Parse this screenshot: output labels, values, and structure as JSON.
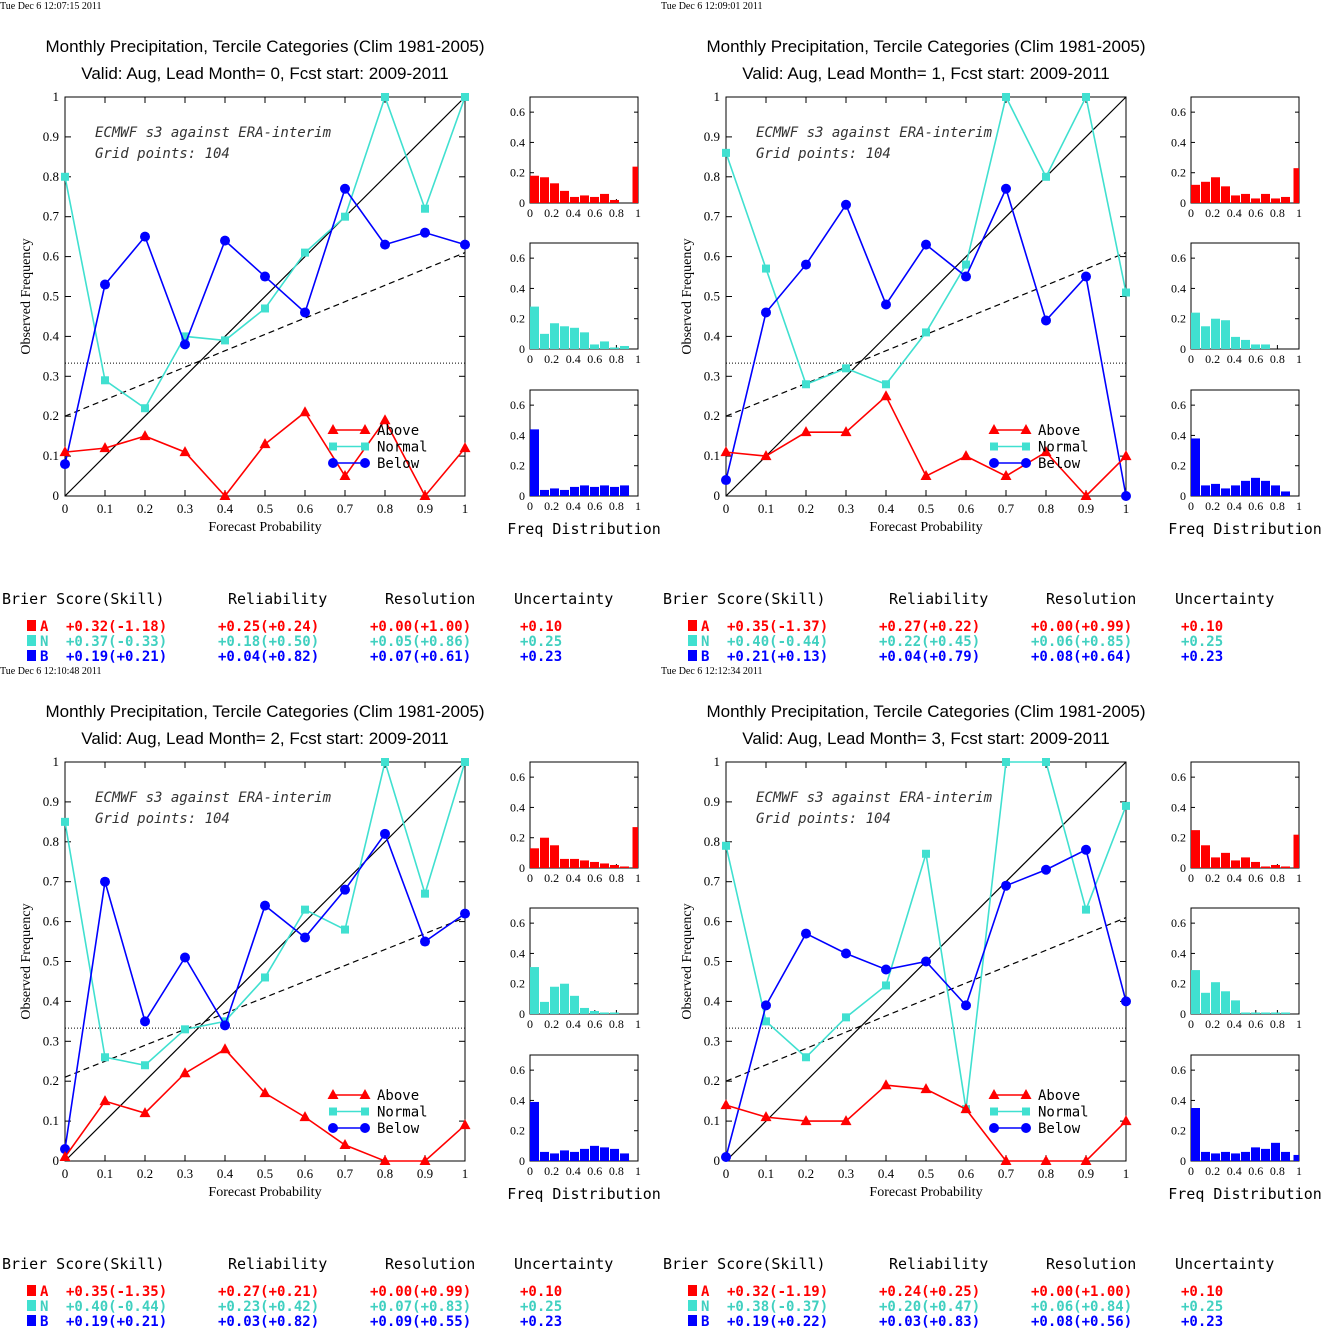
{
  "colors": {
    "above": "#ff0000",
    "normal": "#40e0d0",
    "below": "#0000ff",
    "above_text": "#ff0000",
    "normal_text": "#40d0c0",
    "below_text": "#0000ff",
    "axis": "#000000"
  },
  "common": {
    "title_line1": "Monthly Precipitation, Tercile Categories (Clim 1981-2005)",
    "annotation_line1": "ECMWF s3 against ERA-interim",
    "annotation_line2": "Grid points:  104",
    "xlabel": "Forecast Probability",
    "ylabel": "Observed Frequency",
    "hist_xlabel": "Freq Distribution",
    "legend": [
      "Above",
      "Normal",
      "Below"
    ],
    "score_headers": [
      "Brier Score(Skill)",
      "Reliability",
      "Resolution",
      "Uncertainty"
    ],
    "x_ticks": [
      "0",
      "0.1",
      "0.2",
      "0.3",
      "0.4",
      "0.5",
      "0.6",
      "0.7",
      "0.8",
      "0.9",
      "1"
    ],
    "y_ticks": [
      "0",
      "0.1",
      "0.2",
      "0.3",
      "0.4",
      "0.5",
      "0.6",
      "0.7",
      "0.8",
      "0.9",
      "1"
    ],
    "hist_x_ticks": [
      "0",
      "0.2",
      "0.4",
      "0.6",
      "0.8",
      "1"
    ],
    "hist_y_ticks": [
      "0",
      "0.2",
      "0.4",
      "0.6"
    ]
  },
  "chart_data": [
    {
      "type": "line",
      "timestamp": "Tue Dec  6 12:07:15 2011",
      "title_line2": "Valid: Aug, Lead Month= 0, Fcst start: 2009-2011",
      "x": [
        0,
        0.1,
        0.2,
        0.3,
        0.4,
        0.5,
        0.6,
        0.7,
        0.8,
        0.9,
        1
      ],
      "xlim": [
        0,
        1
      ],
      "ylim": [
        0,
        1
      ],
      "climatology": 0.333,
      "dashed_line": [
        0.2,
        0.61
      ],
      "series": [
        {
          "name": "Above",
          "values": [
            0.11,
            0.12,
            0.15,
            0.11,
            0.0,
            0.13,
            0.21,
            0.05,
            0.19,
            0.0,
            0.12
          ]
        },
        {
          "name": "Normal",
          "values": [
            0.8,
            0.29,
            0.22,
            0.4,
            0.39,
            0.47,
            0.61,
            0.7,
            1.0,
            0.72,
            1.0
          ]
        },
        {
          "name": "Below",
          "values": [
            0.08,
            0.53,
            0.65,
            0.38,
            0.64,
            0.55,
            0.46,
            0.77,
            0.63,
            0.66,
            0.63
          ]
        }
      ],
      "hist": {
        "above": [
          0.18,
          0.17,
          0.13,
          0.08,
          0.04,
          0.05,
          0.04,
          0.06,
          0.02,
          0.0,
          0.24
        ],
        "normal": [
          0.28,
          0.1,
          0.17,
          0.15,
          0.14,
          0.11,
          0.03,
          0.05,
          0.01,
          0.02,
          0.0
        ],
        "below": [
          0.44,
          0.04,
          0.05,
          0.04,
          0.06,
          0.07,
          0.06,
          0.07,
          0.06,
          0.07,
          0.0
        ]
      },
      "scores": [
        {
          "cat": "A",
          "brier": "+0.32(-1.18)",
          "reliability": "+0.25(+0.24)",
          "resolution": "+0.00(+1.00)",
          "uncertainty": "+0.10"
        },
        {
          "cat": "N",
          "brier": "+0.37(-0.33)",
          "reliability": "+0.18(+0.50)",
          "resolution": "+0.05(+0.86)",
          "uncertainty": "+0.25"
        },
        {
          "cat": "B",
          "brier": "+0.19(+0.21)",
          "reliability": "+0.04(+0.82)",
          "resolution": "+0.07(+0.61)",
          "uncertainty": "+0.23"
        }
      ]
    },
    {
      "type": "line",
      "timestamp": "Tue Dec  6 12:09:01 2011",
      "title_line2": "Valid: Aug, Lead Month= 1, Fcst start: 2009-2011",
      "x": [
        0,
        0.1,
        0.2,
        0.3,
        0.4,
        0.5,
        0.6,
        0.7,
        0.8,
        0.9,
        1
      ],
      "xlim": [
        0,
        1
      ],
      "ylim": [
        0,
        1
      ],
      "climatology": 0.333,
      "dashed_line": [
        0.2,
        0.61
      ],
      "series": [
        {
          "name": "Above",
          "values": [
            0.11,
            0.1,
            0.16,
            0.16,
            0.25,
            0.05,
            0.1,
            0.05,
            0.11,
            0.0,
            0.1
          ]
        },
        {
          "name": "Normal",
          "values": [
            0.86,
            0.57,
            0.28,
            0.32,
            0.28,
            0.41,
            0.58,
            1.0,
            0.8,
            1.0,
            0.51
          ]
        },
        {
          "name": "Below",
          "values": [
            0.04,
            0.46,
            0.58,
            0.73,
            0.48,
            0.63,
            0.55,
            0.77,
            0.44,
            0.55,
            0.0
          ]
        }
      ],
      "hist": {
        "above": [
          0.12,
          0.14,
          0.17,
          0.11,
          0.05,
          0.06,
          0.03,
          0.06,
          0.03,
          0.04,
          0.23
        ],
        "normal": [
          0.24,
          0.15,
          0.2,
          0.19,
          0.08,
          0.06,
          0.03,
          0.03,
          0.0,
          0.0,
          0.0
        ],
        "below": [
          0.38,
          0.07,
          0.08,
          0.05,
          0.07,
          0.1,
          0.12,
          0.1,
          0.07,
          0.03,
          0.0
        ]
      },
      "scores": [
        {
          "cat": "A",
          "brier": "+0.35(-1.37)",
          "reliability": "+0.27(+0.22)",
          "resolution": "+0.00(+0.99)",
          "uncertainty": "+0.10"
        },
        {
          "cat": "N",
          "brier": "+0.40(-0.44)",
          "reliability": "+0.22(+0.45)",
          "resolution": "+0.06(+0.85)",
          "uncertainty": "+0.25"
        },
        {
          "cat": "B",
          "brier": "+0.21(+0.13)",
          "reliability": "+0.04(+0.79)",
          "resolution": "+0.08(+0.64)",
          "uncertainty": "+0.23"
        }
      ]
    },
    {
      "type": "line",
      "timestamp": "Tue Dec  6 12:10:48 2011",
      "title_line2": "Valid: Aug, Lead Month= 2, Fcst start: 2009-2011",
      "x": [
        0,
        0.1,
        0.2,
        0.3,
        0.4,
        0.5,
        0.6,
        0.7,
        0.8,
        0.9,
        1
      ],
      "xlim": [
        0,
        1
      ],
      "ylim": [
        0,
        1
      ],
      "climatology": 0.333,
      "dashed_line": [
        0.21,
        0.61
      ],
      "series": [
        {
          "name": "Above",
          "values": [
            0.01,
            0.15,
            0.12,
            0.22,
            0.28,
            0.17,
            0.11,
            0.04,
            0.0,
            0.0,
            0.09
          ]
        },
        {
          "name": "Normal",
          "values": [
            0.85,
            0.26,
            0.24,
            0.33,
            0.35,
            0.46,
            0.63,
            0.58,
            1.0,
            0.67,
            1.0
          ]
        },
        {
          "name": "Below",
          "values": [
            0.03,
            0.7,
            0.35,
            0.51,
            0.34,
            0.64,
            0.56,
            0.68,
            0.82,
            0.55,
            0.62
          ]
        }
      ],
      "hist": {
        "above": [
          0.13,
          0.2,
          0.15,
          0.06,
          0.06,
          0.05,
          0.04,
          0.03,
          0.02,
          0.01,
          0.27
        ],
        "normal": [
          0.31,
          0.08,
          0.18,
          0.2,
          0.12,
          0.04,
          0.02,
          0.01,
          0.01,
          0.0,
          0.0
        ],
        "below": [
          0.39,
          0.06,
          0.05,
          0.07,
          0.06,
          0.08,
          0.1,
          0.09,
          0.08,
          0.05,
          0.0
        ]
      },
      "scores": [
        {
          "cat": "A",
          "brier": "+0.35(-1.35)",
          "reliability": "+0.27(+0.21)",
          "resolution": "+0.00(+0.99)",
          "uncertainty": "+0.10"
        },
        {
          "cat": "N",
          "brier": "+0.40(-0.44)",
          "reliability": "+0.23(+0.42)",
          "resolution": "+0.07(+0.83)",
          "uncertainty": "+0.25"
        },
        {
          "cat": "B",
          "brier": "+0.19(+0.21)",
          "reliability": "+0.03(+0.82)",
          "resolution": "+0.09(+0.55)",
          "uncertainty": "+0.23"
        }
      ]
    },
    {
      "type": "line",
      "timestamp": "Tue Dec  6 12:12:34 2011",
      "title_line2": "Valid: Aug, Lead Month= 3, Fcst start: 2009-2011",
      "x": [
        0,
        0.1,
        0.2,
        0.3,
        0.4,
        0.5,
        0.6,
        0.7,
        0.8,
        0.9,
        1
      ],
      "xlim": [
        0,
        1
      ],
      "ylim": [
        0,
        1
      ],
      "climatology": 0.333,
      "dashed_line": [
        0.2,
        0.61
      ],
      "series": [
        {
          "name": "Above",
          "values": [
            0.14,
            0.11,
            0.1,
            0.1,
            0.19,
            0.18,
            0.13,
            0.0,
            0.0,
            0.0,
            0.1
          ]
        },
        {
          "name": "Normal",
          "values": [
            0.79,
            0.35,
            0.26,
            0.36,
            0.44,
            0.77,
            0.13,
            1.0,
            1.0,
            0.63,
            0.89
          ]
        },
        {
          "name": "Below",
          "values": [
            0.01,
            0.39,
            0.57,
            0.52,
            0.48,
            0.5,
            0.39,
            0.69,
            0.73,
            0.78,
            0.4
          ]
        }
      ],
      "hist": {
        "above": [
          0.25,
          0.15,
          0.07,
          0.1,
          0.05,
          0.07,
          0.04,
          0.01,
          0.02,
          0.01,
          0.22
        ],
        "normal": [
          0.29,
          0.14,
          0.21,
          0.15,
          0.09,
          0.01,
          0.01,
          0.01,
          0.01,
          0.01,
          0.0
        ],
        "below": [
          0.35,
          0.06,
          0.05,
          0.06,
          0.05,
          0.06,
          0.09,
          0.08,
          0.12,
          0.06,
          0.04
        ]
      },
      "scores": [
        {
          "cat": "A",
          "brier": "+0.32(-1.19)",
          "reliability": "+0.24(+0.25)",
          "resolution": "+0.00(+1.00)",
          "uncertainty": "+0.10"
        },
        {
          "cat": "N",
          "brier": "+0.38(-0.37)",
          "reliability": "+0.20(+0.47)",
          "resolution": "+0.06(+0.84)",
          "uncertainty": "+0.25"
        },
        {
          "cat": "B",
          "brier": "+0.19(+0.22)",
          "reliability": "+0.03(+0.83)",
          "resolution": "+0.08(+0.56)",
          "uncertainty": "+0.23"
        }
      ]
    }
  ]
}
